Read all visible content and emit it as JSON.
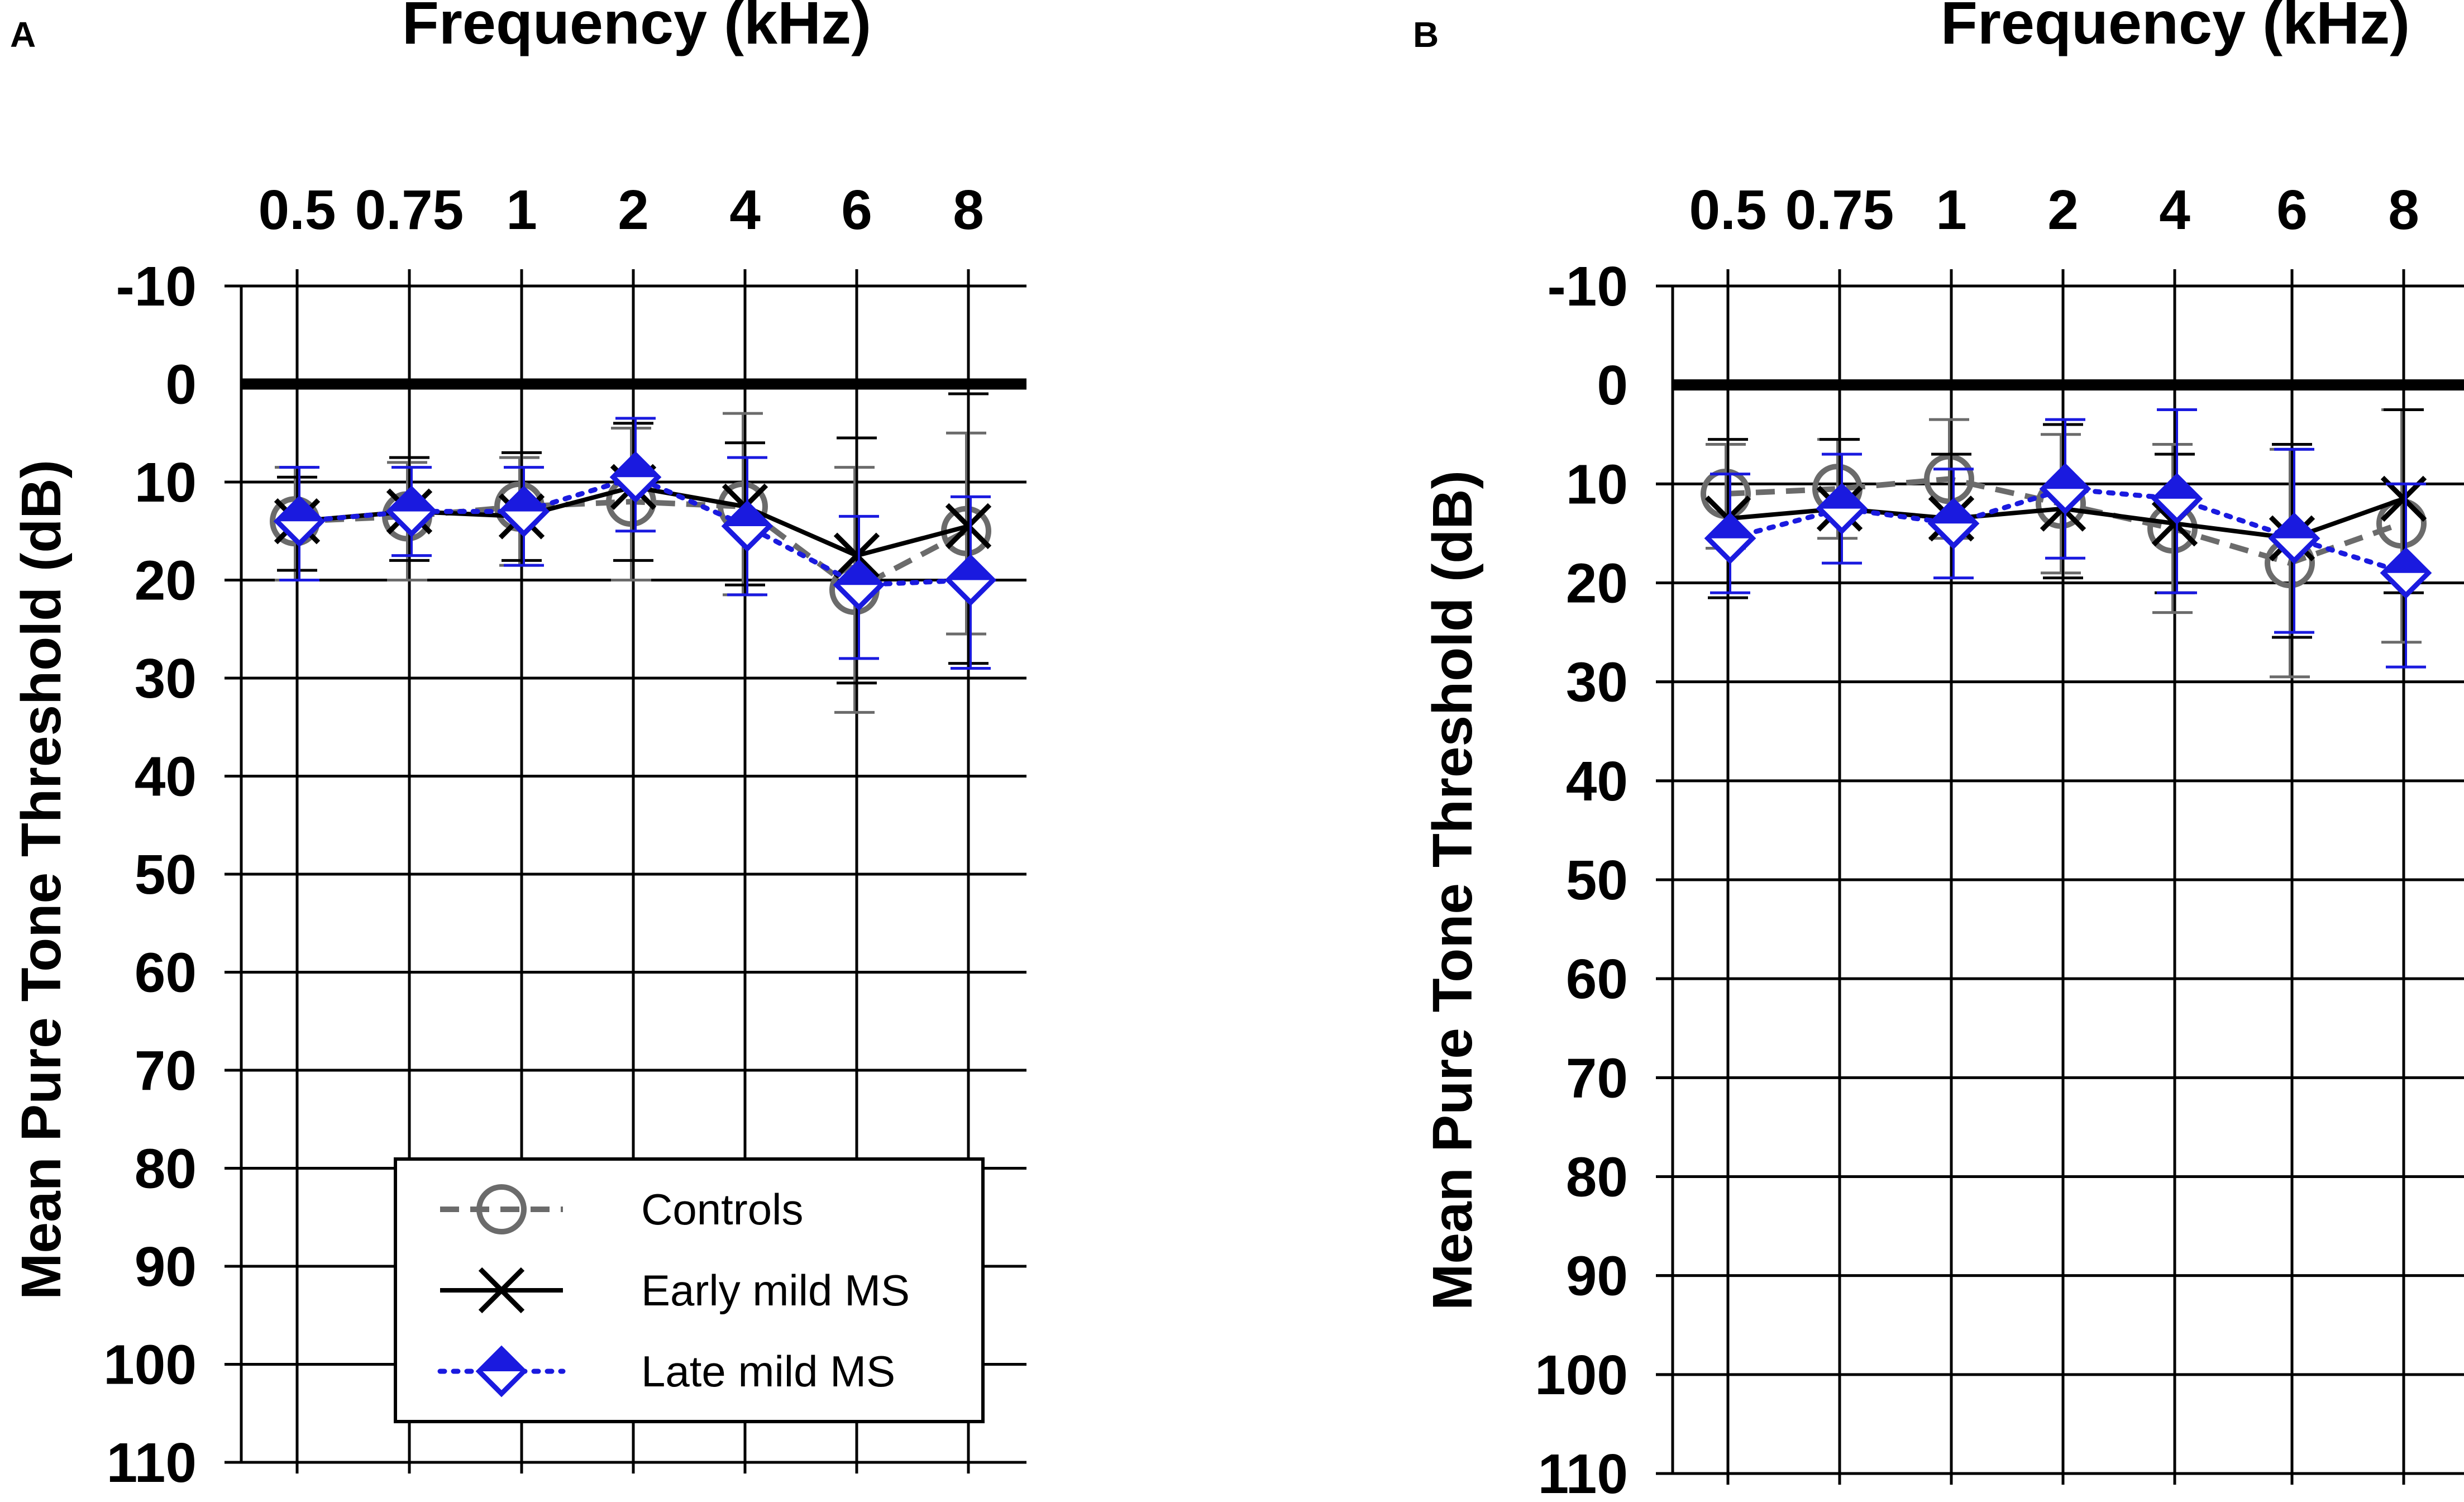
{
  "colors": {
    "controls": "#6b6b6b",
    "early": "#000000",
    "late": "#1a1adf"
  },
  "legend": {
    "position": "lower-center of panel A",
    "entries": [
      {
        "label": "Controls",
        "series": "controls"
      },
      {
        "label": "Early mild MS",
        "series": "early"
      },
      {
        "label": "Late mild MS",
        "series": "late"
      }
    ]
  },
  "chart_data": [
    {
      "panel": "A",
      "type": "line",
      "title": "Frequency (kHz)",
      "ylabel": "Mean Pure Tone Threshold (dB)",
      "ylim": [
        -10,
        110
      ],
      "y_inverted": true,
      "y_ticks": [
        "-10",
        "0",
        "10",
        "20",
        "30",
        "40",
        "50",
        "60",
        "70",
        "80",
        "90",
        "100",
        "110"
      ],
      "x_categories": [
        "0.5",
        "0.75",
        "1",
        "2",
        "4",
        "6",
        "8"
      ],
      "series": [
        {
          "name": "Controls",
          "key": "controls",
          "values": [
            14,
            13.5,
            12.5,
            12,
            12.5,
            21,
            15
          ],
          "err_low": [
            8.5,
            8,
            7.5,
            4.5,
            3,
            8.5,
            5
          ],
          "err_high": [
            20,
            20,
            18.5,
            20,
            21.5,
            33.5,
            25.5
          ]
        },
        {
          "name": "Early mild MS",
          "key": "early",
          "values": [
            14,
            13,
            13.5,
            10.5,
            12.5,
            17.5,
            14.5
          ],
          "err_low": [
            9.5,
            7.5,
            7,
            4,
            6,
            5.5,
            1
          ],
          "err_high": [
            19,
            18,
            18,
            18,
            20.5,
            30.5,
            28.5
          ]
        },
        {
          "name": "Late mild MS",
          "key": "late",
          "values": [
            14,
            13,
            13,
            9.5,
            14.5,
            20.5,
            20
          ],
          "err_low": [
            8.5,
            8.5,
            8.5,
            3.5,
            7.5,
            13.5,
            11.5
          ],
          "err_high": [
            20,
            17.5,
            18.5,
            15,
            21.5,
            28,
            29
          ]
        }
      ]
    },
    {
      "panel": "B",
      "type": "line",
      "title": "Frequency (kHz)",
      "ylabel": "Mean Pure Tone Threshold (dB)",
      "ylim": [
        -10,
        110
      ],
      "y_inverted": true,
      "y_ticks": [
        "-10",
        "0",
        "10",
        "20",
        "30",
        "40",
        "50",
        "60",
        "70",
        "80",
        "90",
        "100",
        "110"
      ],
      "x_categories": [
        "0.5",
        "0.75",
        "1",
        "2",
        "4",
        "6",
        "8"
      ],
      "series": [
        {
          "name": "Controls",
          "key": "controls",
          "values": [
            11,
            10.5,
            9.5,
            12,
            14.5,
            18,
            14
          ],
          "err_low": [
            6,
            5.5,
            3.5,
            5,
            6,
            6.5,
            2.5
          ],
          "err_high": [
            16.5,
            15.5,
            15.5,
            19,
            23,
            29.5,
            26
          ],
          "err_cap_visible": [
            true,
            true,
            true,
            true,
            true,
            true,
            true
          ]
        },
        {
          "name": "Early mild MS",
          "key": "early",
          "values": [
            13.5,
            12.5,
            13.5,
            12.5,
            14,
            15.5,
            11.5
          ],
          "err_low": [
            5.5,
            5.5,
            7,
            4,
            7,
            6,
            2.5
          ],
          "err_high": [
            21.5,
            20,
            20,
            19.5,
            21,
            25.5,
            21
          ]
        },
        {
          "name": "Late mild MS",
          "key": "late",
          "values": [
            15.5,
            12.5,
            14,
            10.5,
            11.5,
            15.5,
            19
          ],
          "err_low": [
            9,
            7,
            8.5,
            3.5,
            2.5,
            6.5,
            10
          ],
          "err_high": [
            21,
            18,
            19.5,
            17.5,
            21,
            25,
            28.5
          ]
        }
      ]
    }
  ]
}
